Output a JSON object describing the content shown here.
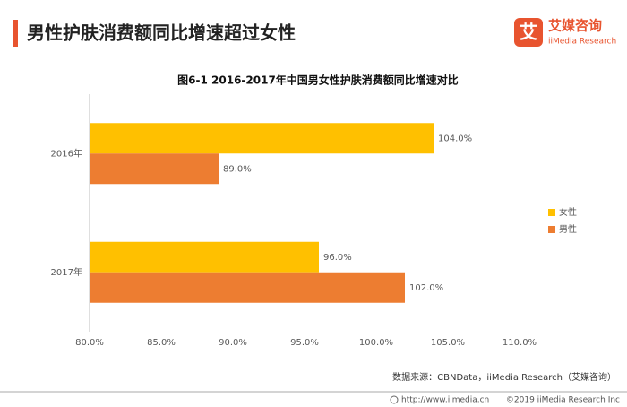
{
  "header": {
    "title": "男性护肤消费额同比增速超过女性",
    "logo_mark": "艾",
    "logo_name": "艾媒咨询",
    "logo_sub": "iiMedia Research"
  },
  "chart_data": {
    "type": "bar",
    "orientation": "horizontal",
    "title": "图6-1 2016-2017年中国男女性护肤消费额同比增速对比",
    "categories": [
      "2016年",
      "2017年"
    ],
    "series": [
      {
        "name": "女性",
        "color": "#FFC000",
        "values": [
          104,
          96
        ],
        "value_labels": [
          "104.0%",
          "96.0%"
        ]
      },
      {
        "name": "男性",
        "color": "#ED7D31",
        "values": [
          89,
          102
        ],
        "value_labels": [
          "89.0%",
          "102.0%"
        ]
      }
    ],
    "xlim": [
      80,
      110
    ],
    "xticks": [
      {
        "value": 80,
        "label": "80.0%"
      },
      {
        "value": 85,
        "label": "85.0%"
      },
      {
        "value": 90,
        "label": "90.0%"
      },
      {
        "value": 95,
        "label": "95.0%"
      },
      {
        "value": 100,
        "label": "100.0%"
      },
      {
        "value": 105,
        "label": "105.0%"
      },
      {
        "value": 110,
        "label": "110.0%"
      }
    ],
    "legend": "right"
  },
  "source": "数据来源：CBNData，iiMedia Research（艾媒咨询）",
  "footer": {
    "url": "http://www.iimedia.cn",
    "copyright": "©2019  iiMedia Research Inc"
  }
}
